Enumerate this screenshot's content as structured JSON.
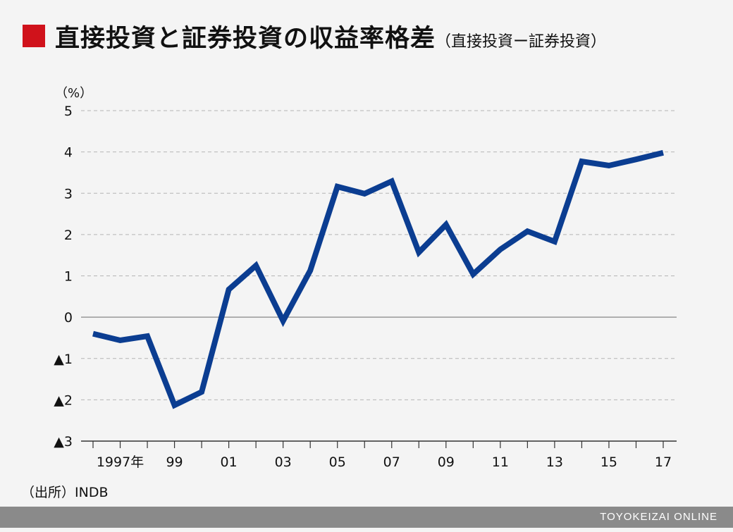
{
  "header": {
    "title": "直接投資と証券投資の収益率格差",
    "subtitle": "（直接投資ー証券投資）"
  },
  "source": "（出所）INDB",
  "footer": "TOYOKEIZAI ONLINE",
  "colors": {
    "line": "#0b3d91",
    "accent": "#d0121b"
  },
  "chart_data": {
    "type": "line",
    "title": "直接投資と証券投資の収益率格差（直接投資ー証券投資）",
    "ylabel": "（%）",
    "xlabel": "",
    "ylim": [
      -3,
      5
    ],
    "yticks": [
      5,
      4,
      3,
      2,
      1,
      0,
      -1,
      -2,
      -3
    ],
    "ytick_labels": [
      "5",
      "4",
      "3",
      "2",
      "1",
      "0",
      "▲1",
      "▲2",
      "▲3"
    ],
    "x": [
      1996,
      1997,
      1998,
      1999,
      2000,
      2001,
      2002,
      2003,
      2004,
      2005,
      2006,
      2007,
      2008,
      2009,
      2010,
      2011,
      2012,
      2013,
      2014,
      2015,
      2016,
      2017
    ],
    "xtick_labels": [
      {
        "year": 1997,
        "label": "1997年"
      },
      {
        "year": 1999,
        "label": "99"
      },
      {
        "year": 2001,
        "label": "01"
      },
      {
        "year": 2003,
        "label": "03"
      },
      {
        "year": 2005,
        "label": "05"
      },
      {
        "year": 2007,
        "label": "07"
      },
      {
        "year": 2009,
        "label": "09"
      },
      {
        "year": 2011,
        "label": "11"
      },
      {
        "year": 2013,
        "label": "13"
      },
      {
        "year": 2015,
        "label": "15"
      },
      {
        "year": 2017,
        "label": "17"
      }
    ],
    "series": [
      {
        "name": "収益率格差",
        "values": [
          -0.4,
          -0.56,
          -0.46,
          -2.13,
          -1.81,
          0.67,
          1.25,
          -0.09,
          1.13,
          3.16,
          2.99,
          3.29,
          1.57,
          2.24,
          1.04,
          1.64,
          2.08,
          1.83,
          3.77,
          3.67,
          3.82,
          3.98
        ]
      }
    ],
    "grid": true
  }
}
